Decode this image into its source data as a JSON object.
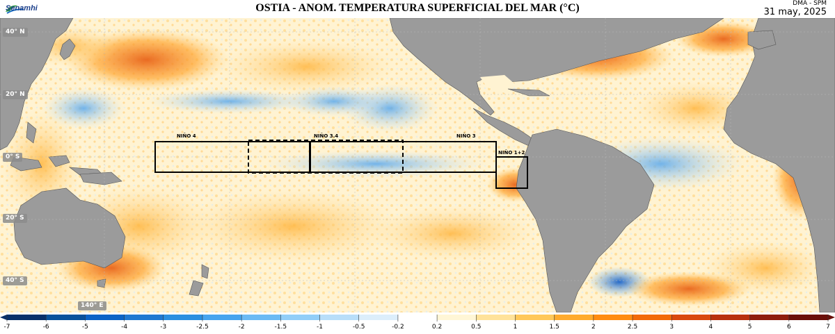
{
  "header": {
    "logo_text": "Senamhi",
    "title": "OSTIA - ANOM. TEMPERATURA SUPERFICIAL DEL MAR (°C)",
    "credit": "DMA - SPM",
    "date": "31 may, 2025"
  },
  "latitude_labels": [
    "40° N",
    "20° N",
    "0° S",
    "20° S",
    "40° S"
  ],
  "longitude_labels": [
    "140° E"
  ],
  "nino_regions": [
    "NIÑO 4",
    "NIÑO 3.4",
    "NIÑO 3",
    "NIÑO 1+2"
  ],
  "colorbar": {
    "ticks": [
      "-7",
      "-6",
      "-5",
      "-4",
      "-3",
      "-2.5",
      "-2",
      "-1.5",
      "-1",
      "-0.5",
      "-0.2",
      "0.2",
      "0.5",
      "1",
      "1.5",
      "2",
      "2.5",
      "3",
      "4",
      "5",
      "6",
      "7"
    ],
    "colors": [
      "#08306b",
      "#08519c",
      "#0b63c6",
      "#1f78d1",
      "#2b8fe0",
      "#46a4ee",
      "#6bbaf4",
      "#92cef8",
      "#b8def9",
      "#dceefb",
      "#ffffff",
      "#fff6d6",
      "#ffe29a",
      "#ffc85a",
      "#ffab2e",
      "#ff8c12",
      "#f26a0a",
      "#d9480f",
      "#b8300f",
      "#8f1d0e",
      "#6b0f0a"
    ]
  }
}
